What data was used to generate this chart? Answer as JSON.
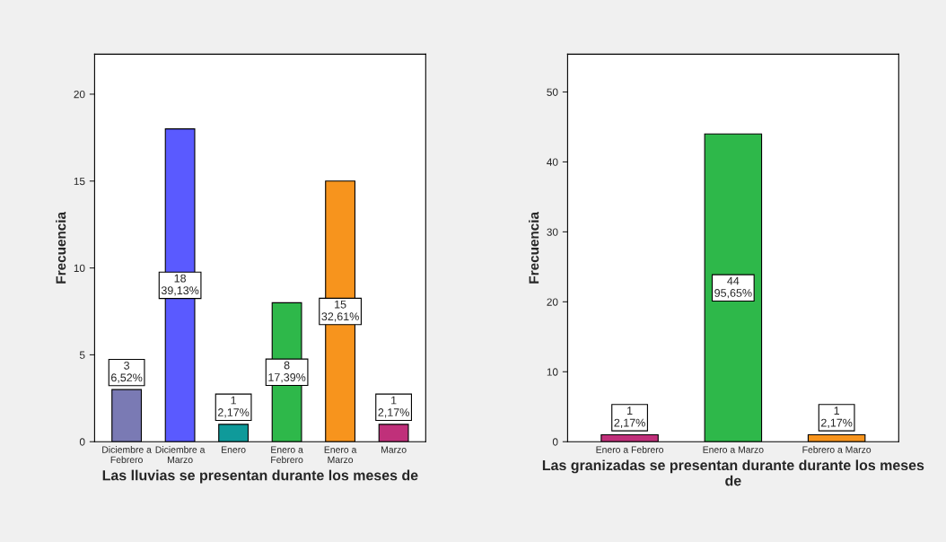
{
  "chart_data": [
    {
      "type": "bar",
      "categories": [
        "Diciembre a\nFebrero",
        "Diciembre a\nMarzo",
        "Enero",
        "Enero a\nFebrero",
        "Enero a\nMarzo",
        "Marzo"
      ],
      "values": [
        3,
        18,
        1,
        8,
        15,
        1
      ],
      "colors": [
        "#7a7ab4",
        "#5a5aff",
        "#0f9a9a",
        "#2eb84a",
        "#f7941d",
        "#c0307a"
      ],
      "value_labels": [
        "3\n6,52%",
        "18\n39,13%",
        "1\n2,17%",
        "8\n17,39%",
        "15\n32,61%",
        "1\n2,17%"
      ],
      "ylim": [
        0,
        22.3
      ],
      "yticks": [
        0,
        5,
        10,
        15,
        20
      ],
      "grid": false,
      "xlabel": "Las lluvias se presentan durante los meses de",
      "ylabel": "Frecuencia"
    },
    {
      "type": "bar",
      "categories": [
        "Enero a Febrero",
        "Enero a Marzo",
        "Febrero a Marzo"
      ],
      "values": [
        1,
        44,
        1
      ],
      "colors": [
        "#c0307a",
        "#2eb84a",
        "#f7941d"
      ],
      "value_labels": [
        "1\n2,17%",
        "44\n95,65%",
        "1\n2,17%"
      ],
      "ylim": [
        0,
        55.4
      ],
      "yticks": [
        0,
        10,
        20,
        30,
        40,
        50
      ],
      "grid": false,
      "xlabel": "Las granizadas se presentan durante durante los meses\nde",
      "ylabel": "Frecuencia"
    }
  ]
}
